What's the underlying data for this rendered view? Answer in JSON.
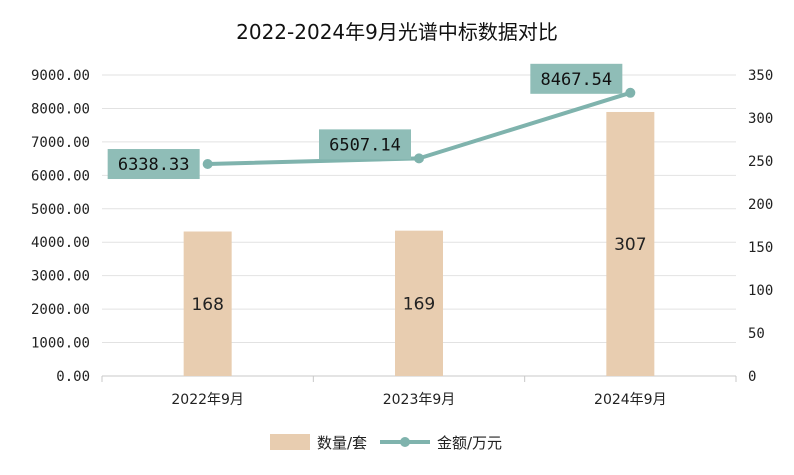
{
  "chart_data": {
    "type": "bar+line",
    "title": "2022-2024年9月光谱中标数据对比",
    "categories": [
      "2022年9月",
      "2023年9月",
      "2024年9月"
    ],
    "series": [
      {
        "name": "数量/套",
        "type": "bar",
        "axis": "right",
        "values": [
          168,
          169,
          307
        ],
        "labels": [
          "168",
          "169",
          "307"
        ],
        "color": "#e8cdb0"
      },
      {
        "name": "金额/万元",
        "type": "line",
        "axis": "left",
        "values": [
          6338.33,
          6507.14,
          8467.54
        ],
        "labels": [
          "6338.33",
          "6507.14",
          "8467.54"
        ],
        "color": "#7fb3ad",
        "label_bg": "#8fbdb7"
      }
    ],
    "left_axis": {
      "min": 0,
      "max": 9000,
      "step": 1000,
      "tick_labels": [
        "0.00",
        "1000.00",
        "2000.00",
        "3000.00",
        "4000.00",
        "5000.00",
        "6000.00",
        "7000.00",
        "8000.00",
        "9000.00"
      ]
    },
    "right_axis": {
      "min": 0,
      "max": 350,
      "step": 50,
      "tick_labels": [
        "0",
        "50",
        "100",
        "150",
        "200",
        "250",
        "300",
        "350"
      ]
    },
    "grid": true,
    "legend": "bottom"
  }
}
